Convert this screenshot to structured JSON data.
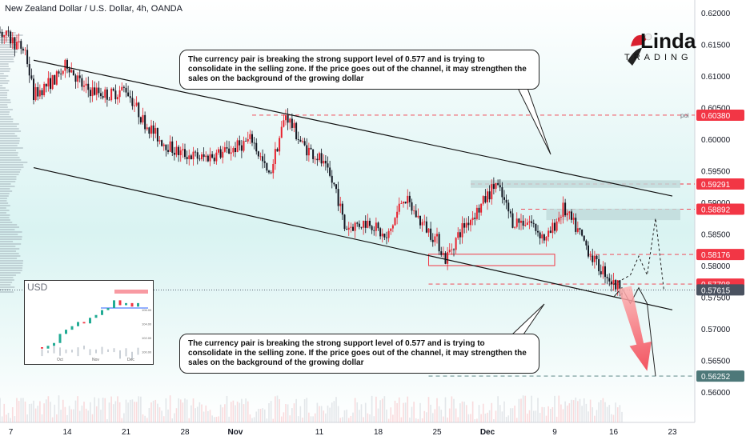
{
  "header": {
    "title": "New Zealand Dollar / U.S. Dollar, 4h, OANDA"
  },
  "logo": {
    "text": "Linda",
    "subtext": "TRADING"
  },
  "callouts": {
    "top": "The currency pair is breaking the strong support level of 0.577 and is trying to consolidate in the selling zone. If the price goes out of the channel, it may strengthen the sales on the background of the growing dollar",
    "bottom": "The currency pair is breaking the strong support level of 0.577 and is trying to consolidate in the selling zone. If the price goes out of the channel, it may strengthen the sales on the background of the growing dollar"
  },
  "inset": {
    "label": "USD"
  },
  "colors": {
    "up": "#e8212d",
    "down": "#131722",
    "bg_top": "#ffffff",
    "bg_mid": "#d6f3f3",
    "accent_red": "#f23645",
    "level_dark": "#4a5260",
    "level_teal": "#bfd9d9"
  },
  "chart_data": {
    "type": "candlestick",
    "title": "New Zealand Dollar / U.S. Dollar, 4h, OANDA",
    "ylim": [
      0.555,
      0.6215
    ],
    "y_ticks": [
      "0.62000",
      "0.61500",
      "0.61000",
      "0.60500",
      "0.60000",
      "0.59500",
      "0.59000",
      "0.58500",
      "0.58000",
      "0.57500",
      "0.57000",
      "0.56500",
      "0.56000"
    ],
    "x_ticks": [
      {
        "label": "7",
        "x": 1
      },
      {
        "label": "14",
        "x": 8
      },
      {
        "label": "21",
        "x": 15
      },
      {
        "label": "28",
        "x": 22
      },
      {
        "label": "Nov",
        "x": 28
      },
      {
        "label": "11",
        "x": 38
      },
      {
        "label": "18",
        "x": 45
      },
      {
        "label": "25",
        "x": 52
      },
      {
        "label": "Dec",
        "x": 58
      },
      {
        "label": "9",
        "x": 66
      },
      {
        "label": "16",
        "x": 73
      },
      {
        "label": "23",
        "x": 80
      }
    ],
    "price_path": [
      [
        0,
        0.617
      ],
      [
        3,
        0.614
      ],
      [
        4,
        0.607
      ],
      [
        7,
        0.61
      ],
      [
        8,
        0.612
      ],
      [
        10,
        0.608
      ],
      [
        13,
        0.607
      ],
      [
        15,
        0.608
      ],
      [
        17,
        0.603
      ],
      [
        19,
        0.6
      ],
      [
        21,
        0.598
      ],
      [
        24,
        0.597
      ],
      [
        27,
        0.598
      ],
      [
        30,
        0.6
      ],
      [
        32,
        0.594
      ],
      [
        34,
        0.604
      ],
      [
        36,
        0.599
      ],
      [
        38,
        0.597
      ],
      [
        40,
        0.592
      ],
      [
        41,
        0.586
      ],
      [
        44,
        0.587
      ],
      [
        46,
        0.584
      ],
      [
        48,
        0.591
      ],
      [
        50,
        0.587
      ],
      [
        52,
        0.584
      ],
      [
        53,
        0.581
      ],
      [
        55,
        0.586
      ],
      [
        57,
        0.589
      ],
      [
        59,
        0.593
      ],
      [
        61,
        0.587
      ],
      [
        63,
        0.587
      ],
      [
        65,
        0.584
      ],
      [
        67,
        0.589
      ],
      [
        69,
        0.585
      ],
      [
        71,
        0.58
      ],
      [
        72,
        0.579
      ],
      [
        73,
        0.577
      ],
      [
        74,
        0.5765
      ]
    ],
    "channel": {
      "upper": [
        [
          4,
          0.6125
        ],
        [
          80,
          0.591
        ]
      ],
      "lower": [
        [
          4,
          0.5955
        ],
        [
          80,
          0.573
        ]
      ]
    },
    "levels": [
      {
        "value": 0.6038,
        "label": "0.60380",
        "style": "dashed",
        "color": "#f23645"
      },
      {
        "value": 0.59291,
        "label": "0.59291",
        "style": "dashed",
        "color": "#f23645"
      },
      {
        "value": 0.58892,
        "label": "0.58892",
        "style": "dashed",
        "color": "#f23645"
      },
      {
        "value": 0.58176,
        "label": "0.58176",
        "style": "dashed",
        "color": "#f23645"
      },
      {
        "value": 0.57708,
        "label": "0.57708",
        "style": "dashed",
        "color": "#f23645"
      },
      {
        "value": 0.57615,
        "label": "0.57615",
        "style": "dotted",
        "color": "#4a5260"
      },
      {
        "value": 0.56252,
        "label": "0.56252",
        "style": "dashed",
        "color": "#4a7a7a"
      }
    ],
    "annotations": [
      "poi"
    ],
    "projection": [
      [
        73,
        0.577
      ],
      [
        75,
        0.5785
      ],
      [
        76,
        0.5815
      ],
      [
        77,
        0.5785
      ],
      [
        78,
        0.5875
      ],
      [
        79,
        0.576
      ]
    ],
    "projection2": [
      [
        73,
        0.575
      ],
      [
        74,
        0.5765
      ],
      [
        75,
        0.574
      ],
      [
        76,
        0.5765
      ],
      [
        77,
        0.574
      ],
      [
        78,
        0.5625
      ]
    ],
    "inset_chart": {
      "label": "USD",
      "y_ticks": [
        "106.00",
        "104.00",
        "102.00",
        "100.00"
      ],
      "x_ticks": [
        "Oct",
        "Nov",
        "Dec"
      ],
      "values": [
        100.6,
        100.4,
        100.8,
        101.2,
        102.5,
        103.1,
        103.6,
        104.2,
        104.0,
        104.8,
        105.2,
        105.9,
        106.2,
        107.3,
        106.6,
        106.9,
        106.4,
        106.9
      ]
    }
  }
}
